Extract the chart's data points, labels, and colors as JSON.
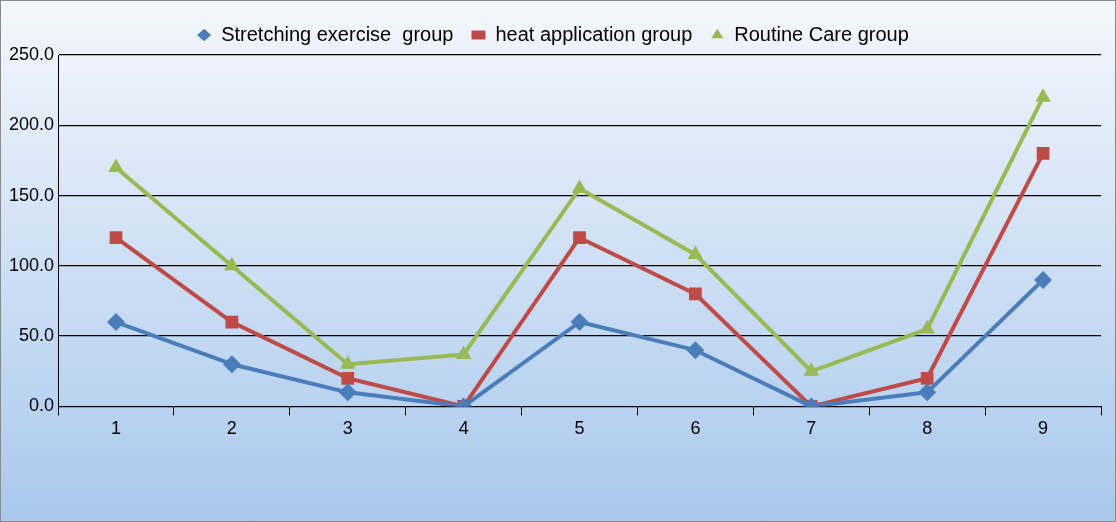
{
  "chart_data": {
    "type": "line",
    "categories": [
      "1",
      "2",
      "3",
      "4",
      "5",
      "6",
      "7",
      "8",
      "9"
    ],
    "series": [
      {
        "name": "Stretching exercise  group",
        "color": "#4a7ebb",
        "marker": "diamond",
        "values": [
          60,
          30,
          10,
          0,
          60,
          40,
          0,
          10,
          90
        ]
      },
      {
        "name": "heat application group",
        "color": "#be4b48",
        "marker": "square",
        "values": [
          120,
          60,
          20,
          0,
          120,
          80,
          0,
          20,
          180
        ]
      },
      {
        "name": "Routine Care group",
        "color": "#98b954",
        "marker": "triangle",
        "values": [
          170,
          100,
          30,
          37,
          155,
          108,
          25,
          55,
          220
        ]
      }
    ],
    "ylim": [
      0,
      250
    ],
    "yticks": [
      {
        "value": 0,
        "label": "0.0"
      },
      {
        "value": 50,
        "label": "50.0"
      },
      {
        "value": 100,
        "label": "100.0"
      },
      {
        "value": 150,
        "label": "150.0"
      },
      {
        "value": 200,
        "label": "200.0"
      },
      {
        "value": 250,
        "label": "250.0"
      }
    ],
    "grid": "y",
    "legend": "top",
    "line_style": "solid"
  }
}
